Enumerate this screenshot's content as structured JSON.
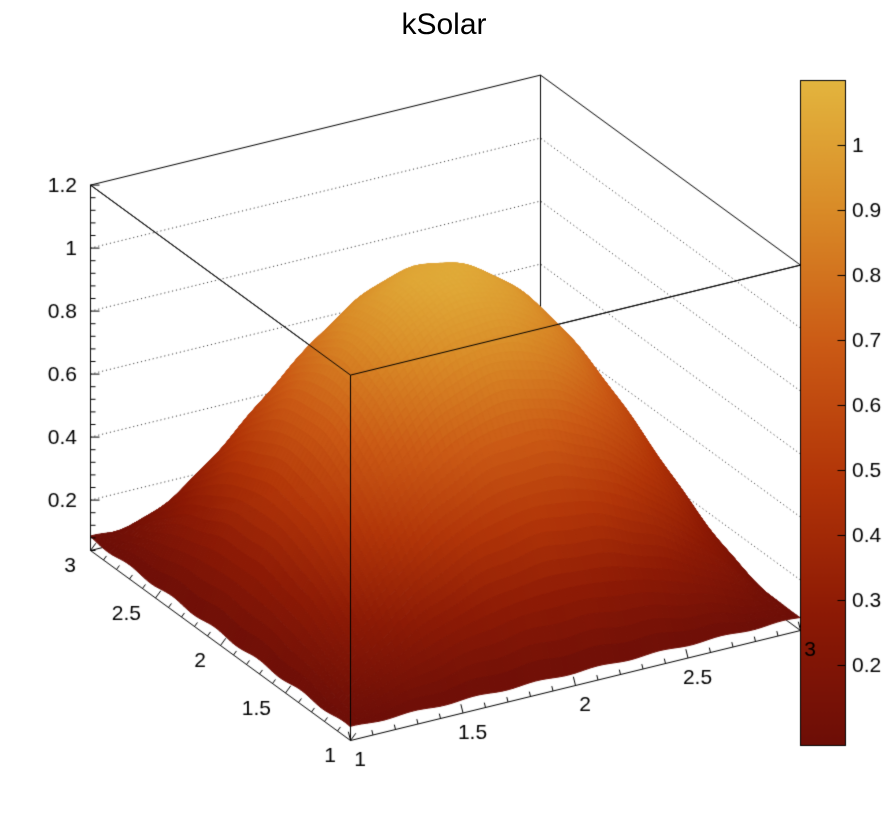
{
  "chart_data": {
    "type": "surface3d",
    "title": "kSolar",
    "background": "#ffffff",
    "axis_color": "#000000",
    "grid_style": "dotted",
    "legend": "none",
    "x_axis": {
      "min": 1,
      "max": 3,
      "tick_values": [
        1,
        1.5,
        2,
        2.5,
        3
      ],
      "tick_labels": [
        "1",
        "1.5",
        "2",
        "2.5",
        "3"
      ],
      "minor_step": 0.1
    },
    "y_axis": {
      "min": 1,
      "max": 3,
      "tick_values": [
        1,
        1.5,
        2,
        2.5,
        3
      ],
      "tick_labels": [
        "1",
        "1.5",
        "2",
        "2.5",
        "3"
      ],
      "minor_step": 0.1
    },
    "z_axis": {
      "min": 0.04,
      "max": 1.2,
      "tick_values": [
        0.2,
        0.4,
        0.6,
        0.8,
        1,
        1.2
      ],
      "tick_labels": [
        "0.2",
        "0.4",
        "0.6",
        "0.8",
        "1",
        "1.2"
      ],
      "minor_step": 0.04,
      "grid_values": [
        0.2,
        0.4,
        0.6,
        0.8,
        1
      ]
    },
    "color_scale": {
      "min": 0.077,
      "max": 1.1,
      "tick_values": [
        0.2,
        0.3,
        0.4,
        0.5,
        0.6,
        0.7,
        0.8,
        0.9,
        1
      ],
      "tick_labels": [
        "0.2",
        "0.3",
        "0.4",
        "0.5",
        "0.6",
        "0.7",
        "0.8",
        "0.9",
        "1"
      ],
      "palette": [
        {
          "t": 0,
          "color": "#6d0e07"
        },
        {
          "t": 0.2,
          "color": "#8d1a05"
        },
        {
          "t": 0.4,
          "color": "#b23508"
        },
        {
          "t": 0.6,
          "color": "#cb5a15"
        },
        {
          "t": 0.8,
          "color": "#d98a27"
        },
        {
          "t": 1,
          "color": "#e3b53e"
        }
      ]
    },
    "surface": {
      "model": "z(x,y) = base + amp * (sin(pi*(x-1)/2) * sin(pi*(y-1)/2))^exp",
      "base": 0.08,
      "amp": 0.97,
      "exp": 0.9,
      "peak": 1.05,
      "sample_x": [
        1,
        1.25,
        1.5,
        1.75,
        2,
        2.25,
        2.5,
        2.75,
        3
      ],
      "sample_y": [
        1,
        1.25,
        1.5,
        1.75,
        2,
        2.25,
        2.5,
        2.75,
        3
      ],
      "sample_z": [
        [
          0.08,
          0.08,
          0.08,
          0.08,
          0.08,
          0.08,
          0.08,
          0.08,
          0.08
        ],
        [
          0.08,
          0.252,
          0.379,
          0.461,
          0.489,
          0.461,
          0.379,
          0.252,
          0.08
        ],
        [
          0.08,
          0.379,
          0.6,
          0.741,
          0.79,
          0.741,
          0.6,
          0.379,
          0.08
        ],
        [
          0.08,
          0.461,
          0.741,
          0.921,
          0.983,
          0.921,
          0.741,
          0.461,
          0.08
        ],
        [
          0.08,
          0.489,
          0.79,
          0.983,
          1.05,
          0.983,
          0.79,
          0.489,
          0.08
        ],
        [
          0.08,
          0.461,
          0.741,
          0.921,
          0.983,
          0.921,
          0.741,
          0.461,
          0.08
        ],
        [
          0.08,
          0.379,
          0.6,
          0.741,
          0.79,
          0.741,
          0.6,
          0.379,
          0.08
        ],
        [
          0.08,
          0.252,
          0.379,
          0.461,
          0.489,
          0.461,
          0.379,
          0.252,
          0.08
        ],
        [
          0.08,
          0.08,
          0.08,
          0.08,
          0.08,
          0.08,
          0.08,
          0.08,
          0.08
        ]
      ]
    }
  }
}
